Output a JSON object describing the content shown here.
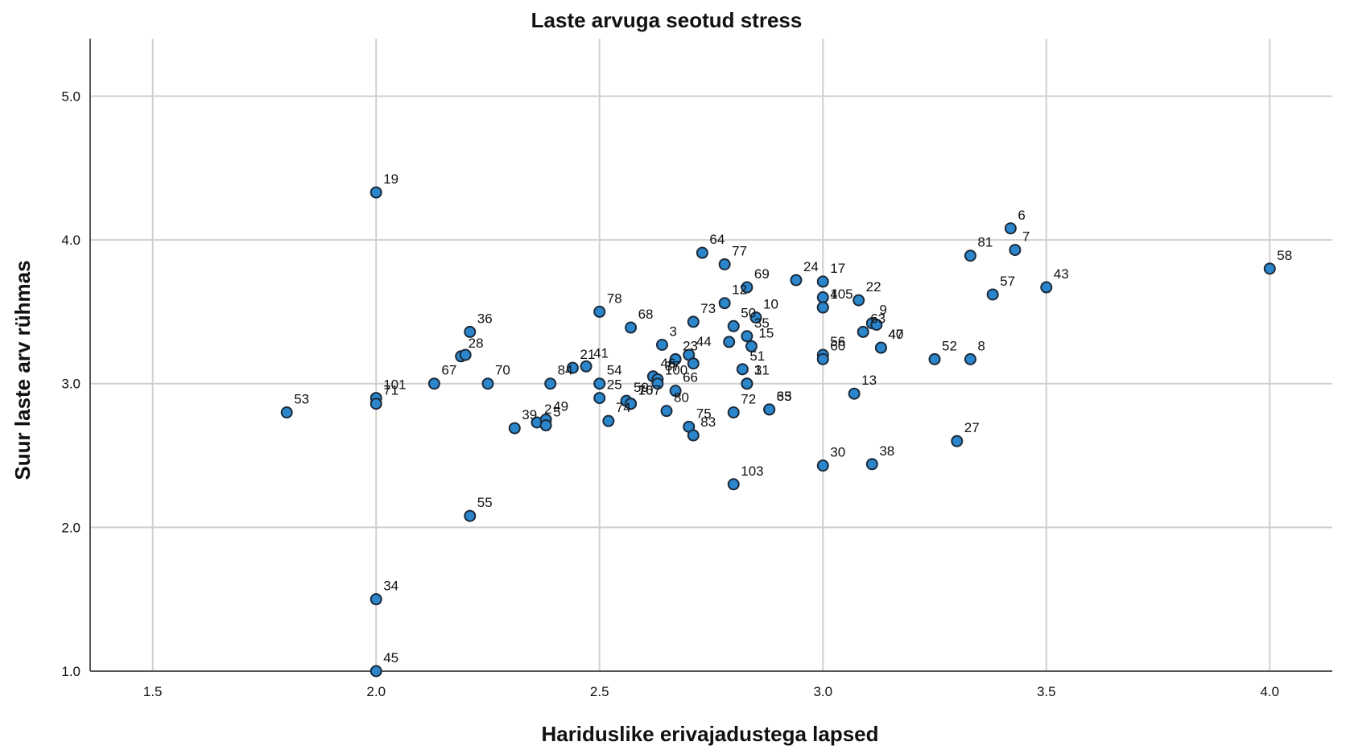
{
  "chart_data": {
    "type": "scatter",
    "title": "Laste arvuga seotud stress",
    "xlabel": "Hariduslike erivajadustega lapsed",
    "ylabel": "Suur laste arv rühmas",
    "xlim": [
      1.36,
      4.14
    ],
    "ylim": [
      1.0,
      5.4
    ],
    "x_ticks": [
      "1.5",
      "2.0",
      "2.5",
      "3.0",
      "3.5",
      "4.0"
    ],
    "y_ticks": [
      "1.0",
      "2.0",
      "3.0",
      "4.0",
      "5.0"
    ],
    "grid": true,
    "point_color": "#2b86cc",
    "points": [
      {
        "id": "19",
        "x": 2.0,
        "y": 4.33
      },
      {
        "id": "53",
        "x": 1.8,
        "y": 2.8
      },
      {
        "id": "101",
        "x": 2.0,
        "y": 2.9
      },
      {
        "id": "71",
        "x": 2.0,
        "y": 2.86
      },
      {
        "id": "34",
        "x": 2.0,
        "y": 1.5
      },
      {
        "id": "45",
        "x": 2.0,
        "y": 1.0
      },
      {
        "id": "55",
        "x": 2.21,
        "y": 2.08
      },
      {
        "id": "36",
        "x": 2.21,
        "y": 3.36
      },
      {
        "id": "28",
        "x": 2.19,
        "y": 3.19
      },
      {
        "id": "",
        "x": 2.2,
        "y": 3.2
      },
      {
        "id": "67",
        "x": 2.13,
        "y": 3.0
      },
      {
        "id": "70",
        "x": 2.25,
        "y": 3.0
      },
      {
        "id": "84",
        "x": 2.39,
        "y": 3.0
      },
      {
        "id": "2",
        "x": 2.36,
        "y": 2.73
      },
      {
        "id": "49",
        "x": 2.38,
        "y": 2.75
      },
      {
        "id": "39",
        "x": 2.31,
        "y": 2.69
      },
      {
        "id": "5",
        "x": 2.38,
        "y": 2.71
      },
      {
        "id": "21",
        "x": 2.44,
        "y": 3.11
      },
      {
        "id": "41",
        "x": 2.47,
        "y": 3.12
      },
      {
        "id": "78",
        "x": 2.5,
        "y": 3.5
      },
      {
        "id": "54",
        "x": 2.5,
        "y": 3.0
      },
      {
        "id": "25",
        "x": 2.5,
        "y": 2.9
      },
      {
        "id": "74",
        "x": 2.52,
        "y": 2.74
      },
      {
        "id": "68",
        "x": 2.57,
        "y": 3.39
      },
      {
        "id": "59",
        "x": 2.56,
        "y": 2.88
      },
      {
        "id": "107",
        "x": 2.57,
        "y": 2.86
      },
      {
        "id": "76",
        "x": 2.57,
        "y": 2.86
      },
      {
        "id": "46",
        "x": 2.62,
        "y": 3.05
      },
      {
        "id": "37",
        "x": 2.63,
        "y": 3.03
      },
      {
        "id": "100",
        "x": 2.63,
        "y": 3.0
      },
      {
        "id": "3",
        "x": 2.64,
        "y": 3.27
      },
      {
        "id": "80",
        "x": 2.65,
        "y": 2.81
      },
      {
        "id": "73",
        "x": 2.71,
        "y": 3.43
      },
      {
        "id": "23",
        "x": 2.67,
        "y": 3.17
      },
      {
        "id": "44",
        "x": 2.7,
        "y": 3.2
      },
      {
        "id": "",
        "x": 2.71,
        "y": 3.14
      },
      {
        "id": "66",
        "x": 2.67,
        "y": 2.95
      },
      {
        "id": "75",
        "x": 2.7,
        "y": 2.7
      },
      {
        "id": "83",
        "x": 2.71,
        "y": 2.64
      },
      {
        "id": "64",
        "x": 2.73,
        "y": 3.91
      },
      {
        "id": "77",
        "x": 2.78,
        "y": 3.83
      },
      {
        "id": "12",
        "x": 2.78,
        "y": 3.56
      },
      {
        "id": "50",
        "x": 2.8,
        "y": 3.4
      },
      {
        "id": "",
        "x": 2.79,
        "y": 3.29
      },
      {
        "id": "51",
        "x": 2.82,
        "y": 3.1
      },
      {
        "id": "1",
        "x": 2.83,
        "y": 3.0
      },
      {
        "id": "72",
        "x": 2.8,
        "y": 2.8
      },
      {
        "id": "103",
        "x": 2.8,
        "y": 2.3
      },
      {
        "id": "69",
        "x": 2.83,
        "y": 3.67
      },
      {
        "id": "10",
        "x": 2.85,
        "y": 3.46
      },
      {
        "id": "35",
        "x": 2.83,
        "y": 3.33
      },
      {
        "id": "15",
        "x": 2.84,
        "y": 3.26
      },
      {
        "id": "31",
        "x": 2.83,
        "y": 3.0
      },
      {
        "id": "65",
        "x": 2.88,
        "y": 2.82
      },
      {
        "id": "33",
        "x": 2.88,
        "y": 2.82
      },
      {
        "id": "24",
        "x": 2.94,
        "y": 3.72
      },
      {
        "id": "17",
        "x": 3.0,
        "y": 3.71
      },
      {
        "id": "",
        "x": 3.0,
        "y": 3.6
      },
      {
        "id": "105",
        "x": 3.0,
        "y": 3.53
      },
      {
        "id": "4",
        "x": 3.0,
        "y": 3.53
      },
      {
        "id": "56",
        "x": 3.0,
        "y": 3.2
      },
      {
        "id": "60",
        "x": 3.0,
        "y": 3.17
      },
      {
        "id": "30",
        "x": 3.0,
        "y": 2.43
      },
      {
        "id": "22",
        "x": 3.08,
        "y": 3.58
      },
      {
        "id": "63",
        "x": 3.09,
        "y": 3.36
      },
      {
        "id": "9",
        "x": 3.11,
        "y": 3.42
      },
      {
        "id": "",
        "x": 3.12,
        "y": 3.41
      },
      {
        "id": "47",
        "x": 3.13,
        "y": 3.25
      },
      {
        "id": "40",
        "x": 3.13,
        "y": 3.25
      },
      {
        "id": "13",
        "x": 3.07,
        "y": 2.93
      },
      {
        "id": "38",
        "x": 3.11,
        "y": 2.44
      },
      {
        "id": "52",
        "x": 3.25,
        "y": 3.17
      },
      {
        "id": "8",
        "x": 3.33,
        "y": 3.17
      },
      {
        "id": "27",
        "x": 3.3,
        "y": 2.6
      },
      {
        "id": "81",
        "x": 3.33,
        "y": 3.89
      },
      {
        "id": "57",
        "x": 3.38,
        "y": 3.62
      },
      {
        "id": "6",
        "x": 3.42,
        "y": 4.08
      },
      {
        "id": "7",
        "x": 3.43,
        "y": 3.93
      },
      {
        "id": "43",
        "x": 3.5,
        "y": 3.67
      },
      {
        "id": "58",
        "x": 4.0,
        "y": 3.8
      }
    ]
  }
}
